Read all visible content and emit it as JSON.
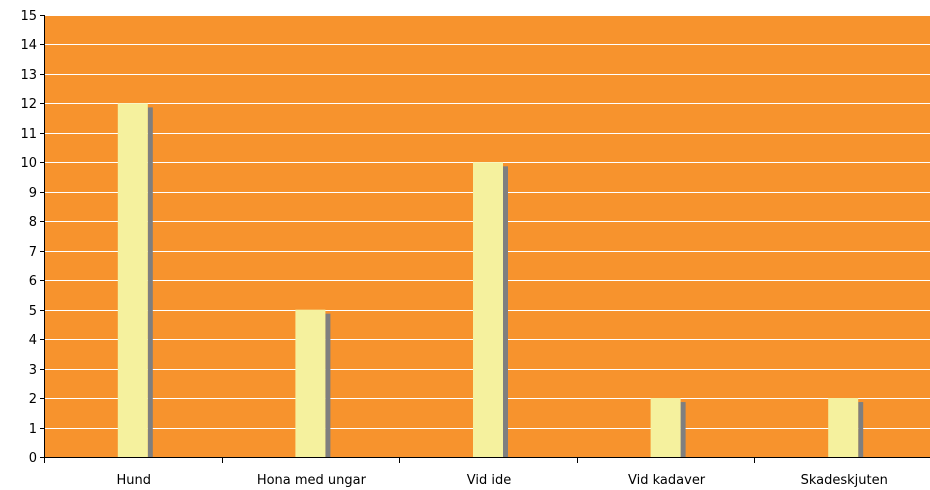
{
  "chart_data": {
    "type": "bar",
    "title": "",
    "xlabel": "",
    "ylabel": "",
    "categories": [
      "Hund",
      "Hona med ungar",
      "Vid ide",
      "Vid kadaver",
      "Skadeskjuten"
    ],
    "values": [
      12,
      5,
      10,
      2,
      2
    ],
    "ylim": [
      0,
      15
    ],
    "yticks": [
      0,
      1,
      2,
      3,
      4,
      5,
      6,
      7,
      8,
      9,
      10,
      11,
      12,
      13,
      14,
      15
    ],
    "grid": true,
    "legend": "none",
    "colors": {
      "plot_background": "#f7932d",
      "bar_fill": "#f5f19e",
      "bar_shadow": "#7f7f7f",
      "gridline": "#ffffff",
      "axis": "#000000"
    }
  }
}
